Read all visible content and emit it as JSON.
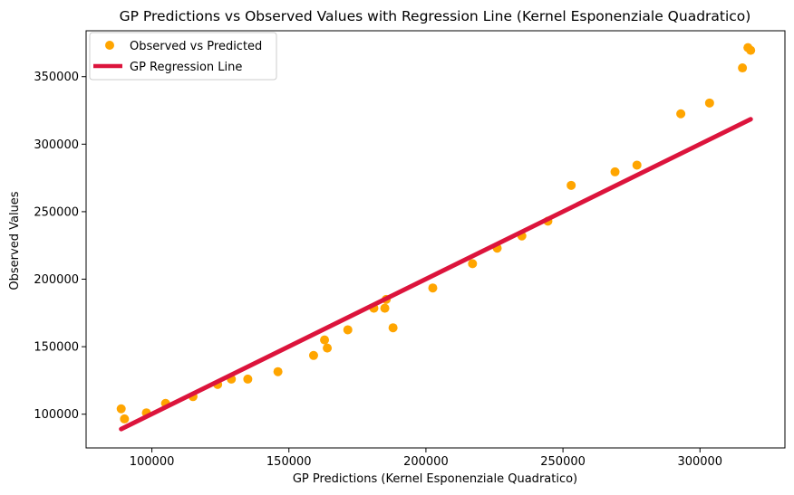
{
  "chart_data": {
    "type": "scatter",
    "title": "GP Predictions vs Observed Values with Regression Line (Kernel Esponenziale Quadratico)",
    "xlabel": "GP Predictions (Kernel Esponenziale Quadratico)",
    "ylabel": "Observed Values",
    "xlim": [
      76000,
      331000
    ],
    "ylim": [
      75000,
      384000
    ],
    "x_ticks": [
      100000,
      150000,
      200000,
      250000,
      300000
    ],
    "y_ticks": [
      100000,
      150000,
      200000,
      250000,
      300000,
      350000
    ],
    "x_tick_labels": [
      "100000",
      "150000",
      "200000",
      "250000",
      "300000"
    ],
    "y_tick_labels": [
      "100000",
      "150000",
      "200000",
      "250000",
      "300000",
      "350000"
    ],
    "grid": false,
    "legend_position": "top-left",
    "legend": [
      "Observed vs Predicted",
      "GP Regression Line"
    ],
    "colors": {
      "points": "#ffa500",
      "line": "#dc143c"
    },
    "series": [
      {
        "name": "Observed vs Predicted",
        "kind": "scatter",
        "points": [
          [
            88800,
            104000
          ],
          [
            90000,
            96500
          ],
          [
            98000,
            101000
          ],
          [
            105000,
            108000
          ],
          [
            115000,
            113000
          ],
          [
            124000,
            122000
          ],
          [
            129000,
            126000
          ],
          [
            135000,
            126000
          ],
          [
            146000,
            131500
          ],
          [
            159000,
            143500
          ],
          [
            163000,
            155000
          ],
          [
            164000,
            149000
          ],
          [
            171500,
            162500
          ],
          [
            181000,
            178500
          ],
          [
            185000,
            178500
          ],
          [
            185500,
            185000
          ],
          [
            188000,
            164000
          ],
          [
            202500,
            193500
          ],
          [
            217000,
            211500
          ],
          [
            226000,
            223000
          ],
          [
            235000,
            232000
          ],
          [
            244500,
            243000
          ],
          [
            253000,
            269500
          ],
          [
            269000,
            279500
          ],
          [
            277000,
            284500
          ],
          [
            293000,
            322500
          ],
          [
            303500,
            330500
          ],
          [
            315500,
            356500
          ],
          [
            317500,
            371500
          ],
          [
            318500,
            369500
          ]
        ]
      },
      {
        "name": "GP Regression Line",
        "kind": "line",
        "x": [
          88800,
          318500
        ],
        "y": [
          89000,
          318500
        ]
      }
    ]
  }
}
